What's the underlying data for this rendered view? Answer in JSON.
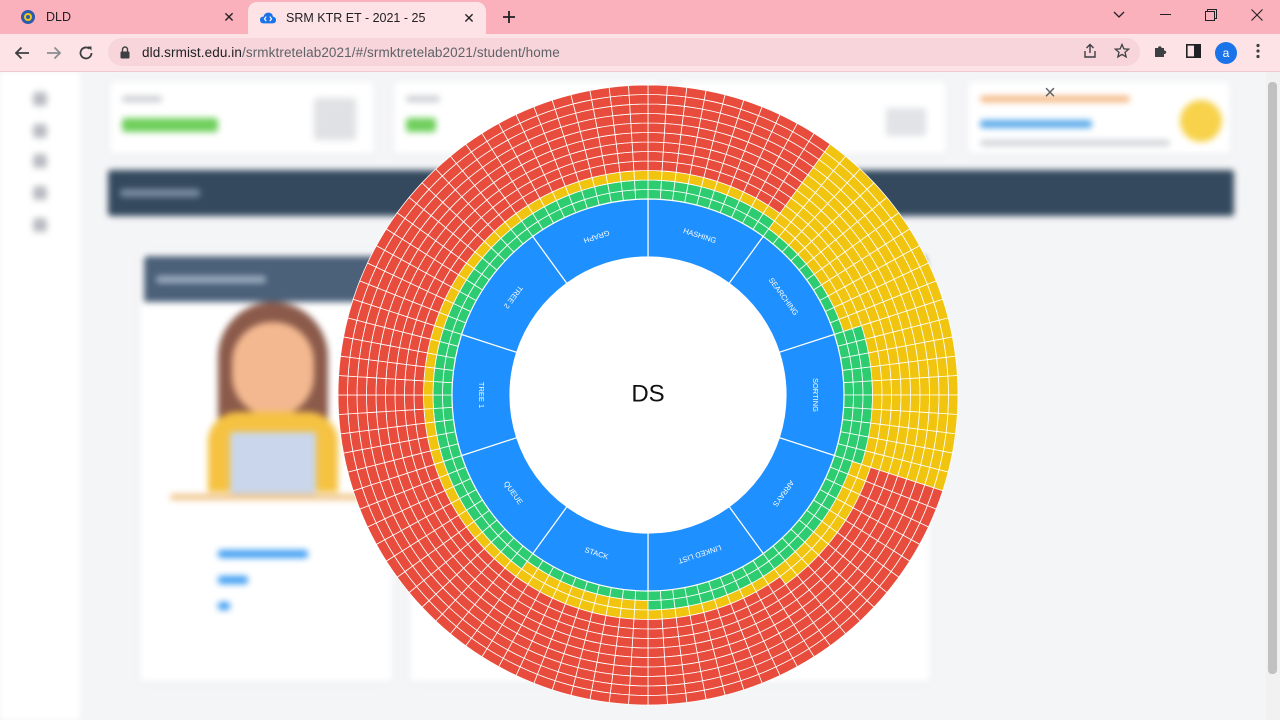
{
  "browser": {
    "tabs": [
      {
        "title": "DLD",
        "active": false
      },
      {
        "title": "SRM KTR ET - 2021 - 25",
        "active": true
      }
    ],
    "url_host": "dld.srmist.edu.in",
    "url_path": "/srmktretelab2021/#/srmktretelab2021/student/home",
    "profile_initial": "a",
    "colors": {
      "tabstrip": "#fbb1bc",
      "toolbar": "#fde2e6"
    },
    "icons": [
      "back-arrow-icon",
      "forward-arrow-icon",
      "reload-icon",
      "lock-icon",
      "share-icon",
      "star-icon",
      "extensions-icon",
      "side-panel-icon",
      "kebab-menu-icon"
    ]
  },
  "modal": {
    "center_label": "DS",
    "close_glyph": "×",
    "topics": [
      {
        "label": "HASHING",
        "tests": [
          "green",
          "green",
          "yellow",
          "red",
          "red",
          "red",
          "red",
          "red",
          "red",
          "red",
          "red",
          "red"
        ]
      },
      {
        "label": "SEARCHING",
        "tests": [
          "green",
          "yellow",
          "yellow",
          "yellow",
          "yellow",
          "yellow",
          "yellow",
          "yellow",
          "yellow",
          "yellow",
          "yellow",
          "yellow"
        ]
      },
      {
        "label": "SORTING",
        "tests": [
          "green",
          "green",
          "green",
          "yellow",
          "yellow",
          "yellow",
          "yellow",
          "yellow",
          "yellow",
          "yellow",
          "yellow",
          "yellow"
        ]
      },
      {
        "label": "ARRAYS",
        "tests": [
          "green",
          "green",
          "yellow",
          "yellow",
          "red",
          "red",
          "red",
          "red",
          "red",
          "red",
          "red",
          "red"
        ]
      },
      {
        "label": "LINKED LIST",
        "tests": [
          "green",
          "green",
          "yellow",
          "red",
          "red",
          "red",
          "red",
          "red",
          "red",
          "red",
          "red",
          "red"
        ]
      },
      {
        "label": "STACK",
        "tests": [
          "green",
          "yellow",
          "yellow",
          "red",
          "red",
          "red",
          "red",
          "red",
          "red",
          "red",
          "red",
          "red"
        ]
      },
      {
        "label": "QUEUE",
        "tests": [
          "green",
          "green",
          "yellow",
          "red",
          "red",
          "red",
          "red",
          "red",
          "red",
          "red",
          "red",
          "red"
        ]
      },
      {
        "label": "TREE 1",
        "tests": [
          "green",
          "green",
          "yellow",
          "red",
          "red",
          "red",
          "red",
          "red",
          "red",
          "red",
          "red",
          "red"
        ]
      },
      {
        "label": "TREE 2",
        "tests": [
          "green",
          "green",
          "yellow",
          "red",
          "red",
          "red",
          "red",
          "red",
          "red",
          "red",
          "red",
          "red"
        ]
      },
      {
        "label": "GRAPH",
        "tests": [
          "green",
          "green",
          "yellow",
          "red",
          "red",
          "red",
          "red",
          "red",
          "red",
          "red",
          "red",
          "red"
        ]
      }
    ],
    "colors": {
      "green": "#2ecc71",
      "yellow": "#f1c40f",
      "red": "#e74c3c",
      "topic": "#1e90ff",
      "stroke": "#ffffff"
    }
  }
}
